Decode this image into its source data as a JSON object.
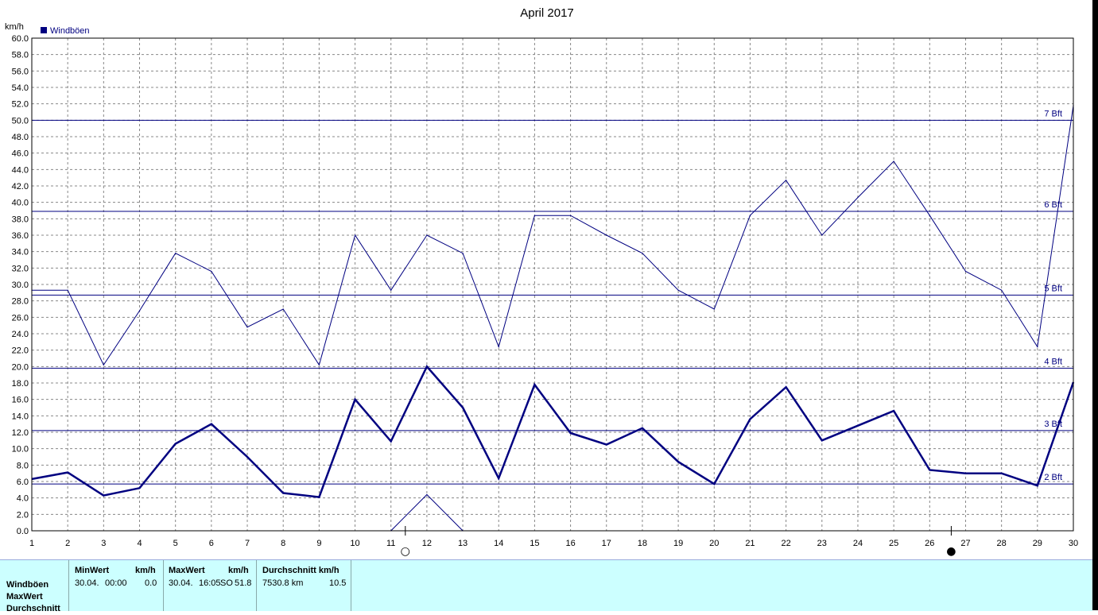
{
  "chart_data": {
    "type": "line",
    "title": "April 2017",
    "ylabel": "km/h",
    "legend": "Windböen",
    "legend_position": "top-left",
    "ylim": [
      0,
      60
    ],
    "yticks": [
      "0.0",
      "2.0",
      "4.0",
      "6.0",
      "8.0",
      "10.0",
      "12.0",
      "14.0",
      "16.0",
      "18.0",
      "20.0",
      "22.0",
      "24.0",
      "26.0",
      "28.0",
      "30.0",
      "32.0",
      "34.0",
      "36.0",
      "38.0",
      "40.0",
      "42.0",
      "44.0",
      "46.0",
      "48.0",
      "50.0",
      "52.0",
      "54.0",
      "56.0",
      "58.0",
      "60.0"
    ],
    "x": [
      1,
      2,
      3,
      4,
      5,
      6,
      7,
      8,
      9,
      10,
      11,
      12,
      13,
      14,
      15,
      16,
      17,
      18,
      19,
      20,
      21,
      22,
      23,
      24,
      25,
      26,
      27,
      28,
      29,
      30
    ],
    "grid": true,
    "series": [
      {
        "name": "Windböen",
        "style": "thick",
        "color": "#000080",
        "values": [
          6.3,
          7.1,
          4.3,
          5.2,
          10.6,
          13.0,
          9.0,
          4.6,
          4.1,
          16.0,
          10.9,
          20.0,
          15.0,
          6.4,
          17.8,
          11.9,
          10.5,
          12.5,
          8.4,
          5.7,
          13.6,
          17.5,
          11.0,
          12.8,
          14.6,
          7.4,
          7.0,
          7.0,
          5.5,
          18.1
        ]
      },
      {
        "name": "MaxWert",
        "style": "thin",
        "color": "#000080",
        "values": [
          29.3,
          29.3,
          20.2,
          26.8,
          33.8,
          31.6,
          24.8,
          27.0,
          20.2,
          36.0,
          29.3,
          36.0,
          33.8,
          22.4,
          38.4,
          38.4,
          36.0,
          33.8,
          29.3,
          27.0,
          38.4,
          42.7,
          36.0,
          40.6,
          45.0,
          38.4,
          31.6,
          29.3,
          22.4,
          51.8
        ]
      },
      {
        "name": "Durchschnitt",
        "style": "thin",
        "color": "#000080",
        "x": [
          11,
          12,
          13
        ],
        "values": [
          0.0,
          4.4,
          0.0
        ]
      }
    ],
    "beaufort_lines": [
      {
        "label": "2 Bft",
        "value": 5.7
      },
      {
        "label": "3 Bft",
        "value": 12.2
      },
      {
        "label": "4 Bft",
        "value": 19.8
      },
      {
        "label": "5 Bft",
        "value": 28.7
      },
      {
        "label": "6 Bft",
        "value": 38.9
      },
      {
        "label": "7 Bft",
        "value": 50.0
      }
    ],
    "moon_phases": [
      {
        "day": 11.4,
        "phase": "full",
        "symbol": "○"
      },
      {
        "day": 26.6,
        "phase": "new",
        "symbol": "●"
      }
    ]
  },
  "stats": {
    "row_labels": [
      "Windböen",
      "MaxWert",
      "Durchschnitt"
    ],
    "min": {
      "header": "MinWert",
      "unit": "km/h",
      "date": "30.04.",
      "time": "00:00",
      "value": "0.0"
    },
    "max": {
      "header": "MaxWert",
      "unit": "km/h",
      "date": "30.04.",
      "time": "16:05",
      "dir": "SO",
      "value": "51.8"
    },
    "avg": {
      "header": "Durchschnitt km/h",
      "distance": "7530.8 km",
      "value": "10.5"
    }
  }
}
